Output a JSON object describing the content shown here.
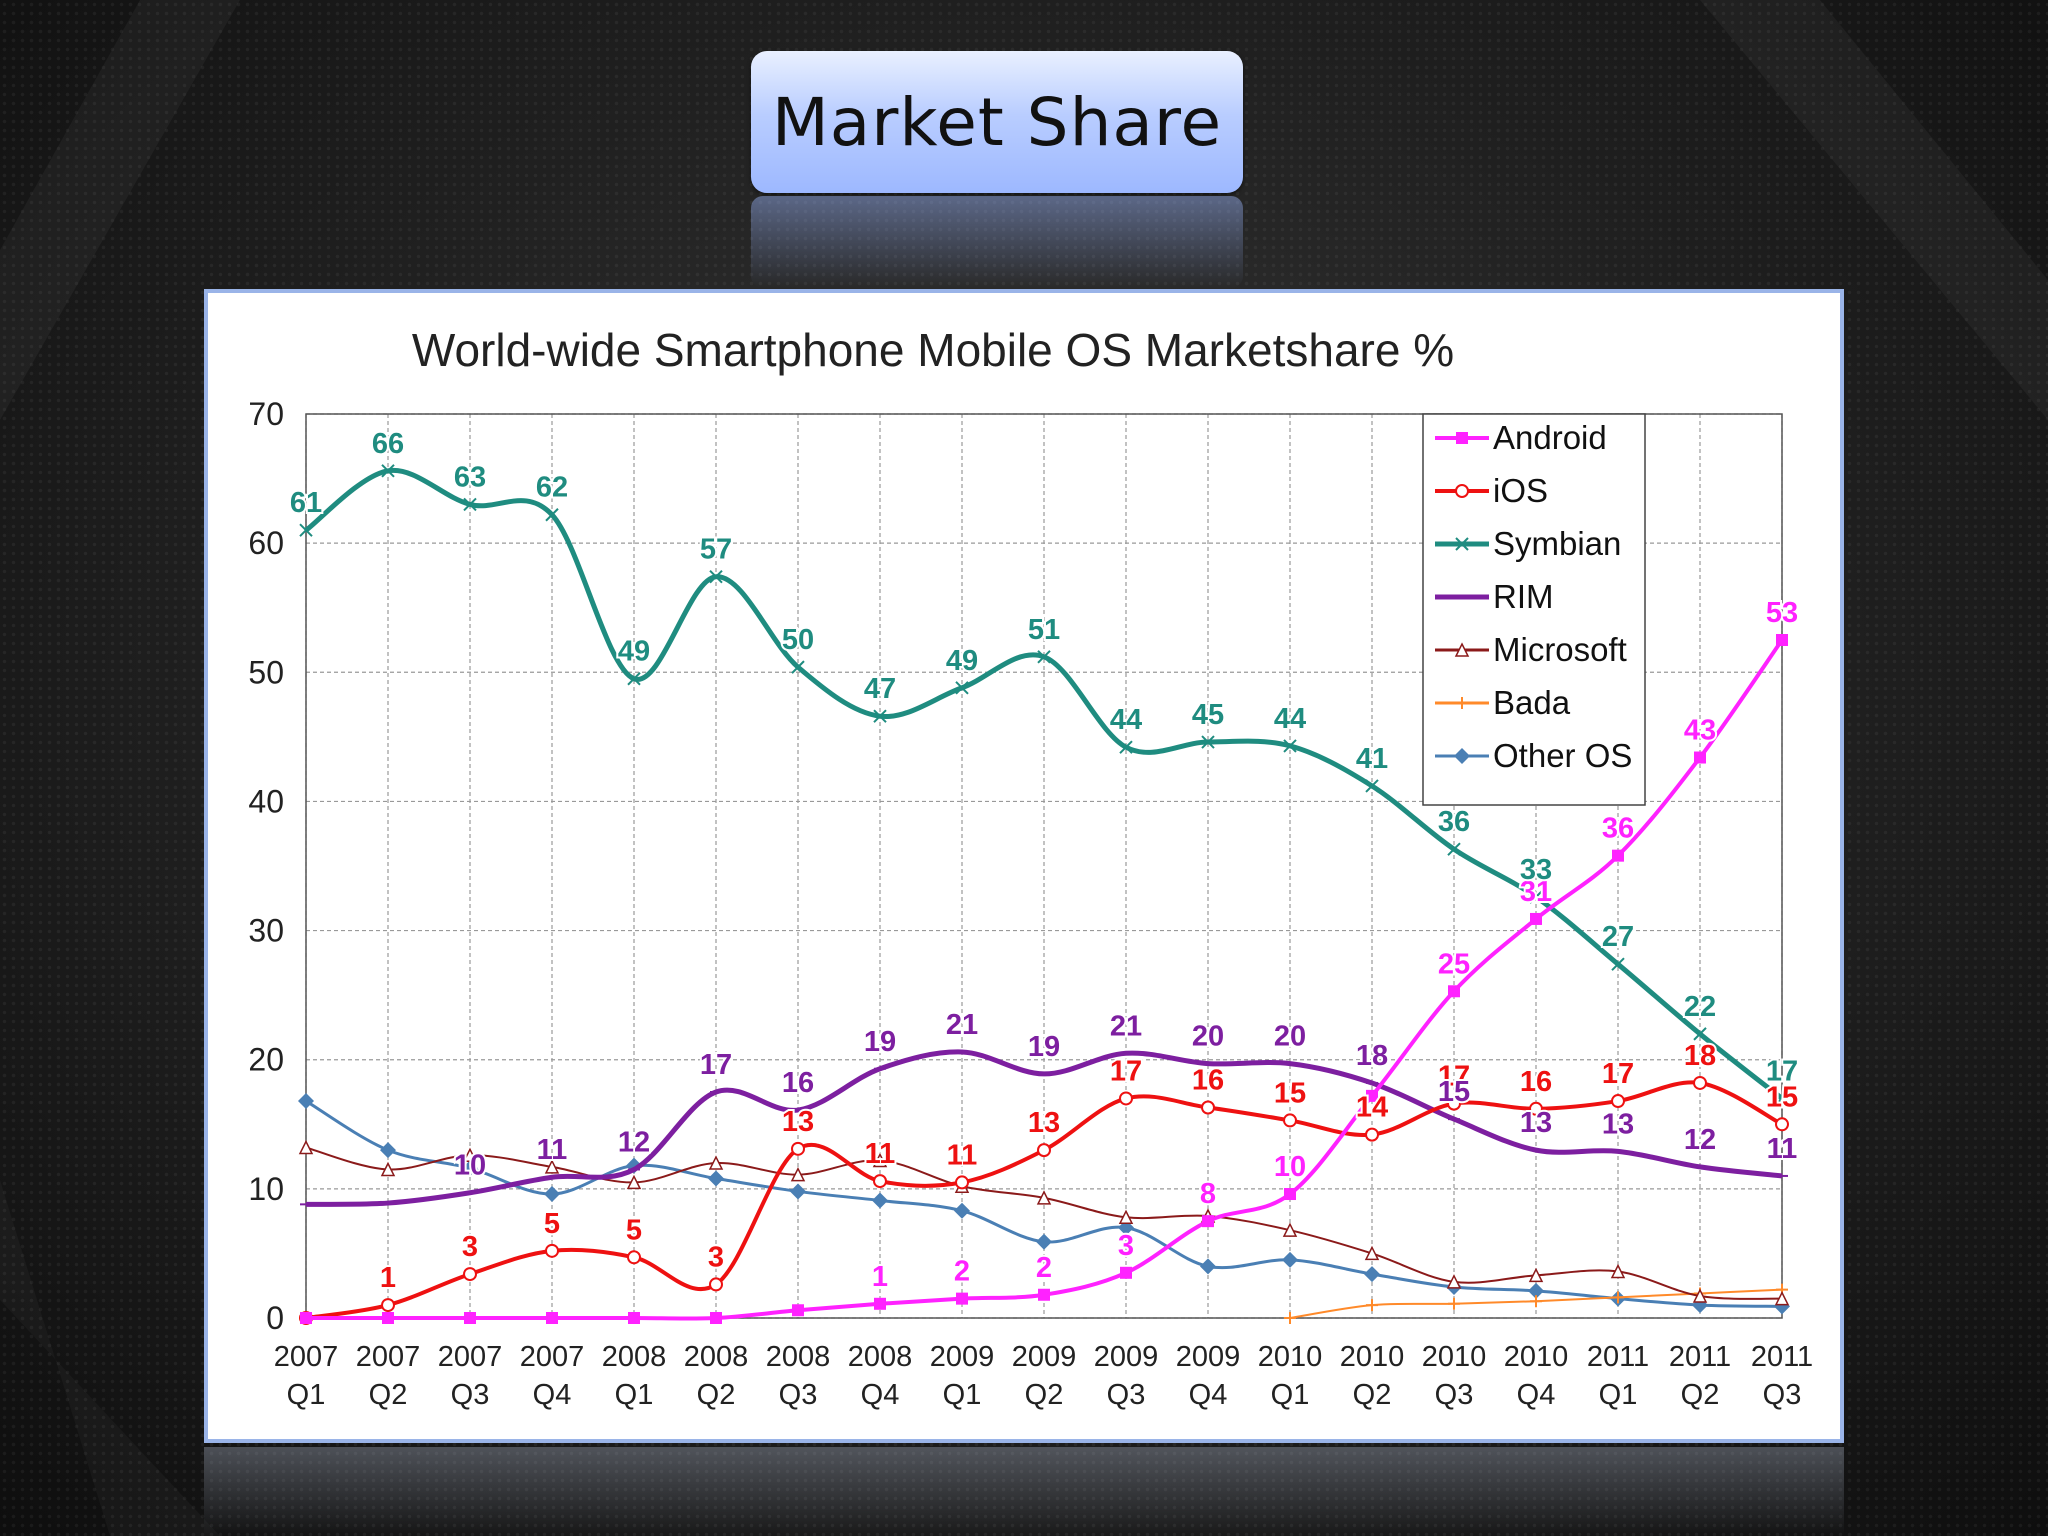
{
  "slide": {
    "title": "Market Share"
  },
  "chart_data": {
    "type": "line",
    "title": "World-wide Smartphone Mobile OS Marketshare  %",
    "xlabel": "",
    "ylabel": "",
    "ylim": [
      0,
      70
    ],
    "yticks": [
      0,
      10,
      20,
      30,
      40,
      50,
      60,
      70
    ],
    "grid": true,
    "legend_position": "top-right",
    "categories": [
      [
        "2007",
        "Q1"
      ],
      [
        "2007",
        "Q2"
      ],
      [
        "2007",
        "Q3"
      ],
      [
        "2007",
        "Q4"
      ],
      [
        "2008",
        "Q1"
      ],
      [
        "2008",
        "Q2"
      ],
      [
        "2008",
        "Q3"
      ],
      [
        "2008",
        "Q4"
      ],
      [
        "2009",
        "Q1"
      ],
      [
        "2009",
        "Q2"
      ],
      [
        "2009",
        "Q3"
      ],
      [
        "2009",
        "Q4"
      ],
      [
        "2010",
        "Q1"
      ],
      [
        "2010",
        "Q2"
      ],
      [
        "2010",
        "Q3"
      ],
      [
        "2010",
        "Q4"
      ],
      [
        "2011",
        "Q1"
      ],
      [
        "2011",
        "Q2"
      ],
      [
        "2011",
        "Q3"
      ]
    ],
    "series": [
      {
        "name": "Android",
        "color": "#ff22ff",
        "marker": "square",
        "width": 4,
        "values": [
          0,
          0,
          0,
          0,
          0,
          0,
          0.6,
          1.1,
          1.5,
          1.8,
          3.5,
          7.5,
          9.6,
          17.2,
          25.3,
          30.9,
          35.8,
          43.4,
          52.5
        ],
        "labels": [
          null,
          null,
          null,
          null,
          null,
          null,
          null,
          "1",
          "2",
          "2",
          "3",
          "8",
          "10",
          null,
          "25",
          "31",
          "36",
          "43",
          "53"
        ]
      },
      {
        "name": "iOS",
        "color": "#ee1111",
        "marker": "circle",
        "width": 4,
        "values": [
          0,
          1,
          3.4,
          5.2,
          4.7,
          2.6,
          13.1,
          10.6,
          10.5,
          13,
          17,
          16.3,
          15.3,
          14.2,
          16.6,
          16.2,
          16.8,
          18.2,
          15
        ],
        "labels": [
          null,
          "1",
          "3",
          "5",
          "5",
          "3",
          "13",
          "11",
          "11",
          "13",
          "17",
          "16",
          "15",
          "14",
          "17",
          "16",
          "17",
          "18",
          "15"
        ]
      },
      {
        "name": "Symbian",
        "color": "#1f8c80",
        "marker": "x",
        "width": 5,
        "values": [
          61,
          65.6,
          63,
          62.2,
          49.5,
          57.4,
          50.4,
          46.6,
          48.8,
          51.2,
          44.2,
          44.6,
          44.3,
          41.2,
          36.3,
          32.6,
          27.4,
          22,
          17
        ],
        "labels": [
          "61",
          "66",
          "63",
          "62",
          "49",
          "57",
          "50",
          "47",
          "49",
          "51",
          "44",
          "45",
          "44",
          "41",
          "36",
          "33",
          "27",
          "22",
          "17"
        ]
      },
      {
        "name": "RIM",
        "color": "#7d1fa0",
        "marker": "line",
        "width": 5,
        "values": [
          8.8,
          8.9,
          9.7,
          10.9,
          11.5,
          17.5,
          16.1,
          19.3,
          20.6,
          18.9,
          20.5,
          19.7,
          19.7,
          18.2,
          15.4,
          13,
          12.9,
          11.7,
          11
        ],
        "labels": [
          null,
          null,
          "10",
          "11",
          "12",
          "17",
          "16",
          "19",
          "21",
          "19",
          "21",
          "20",
          "20",
          "18",
          "15",
          "13",
          "13",
          "12",
          "11"
        ]
      },
      {
        "name": "Microsoft",
        "color": "#8b1a1a",
        "marker": "triangle",
        "width": 2,
        "values": [
          13.2,
          11.5,
          12.6,
          11.7,
          10.5,
          12,
          11.1,
          12.2,
          10.2,
          9.3,
          7.8,
          7.9,
          6.8,
          5,
          2.8,
          3.3,
          3.6,
          1.7,
          1.5
        ],
        "labels": []
      },
      {
        "name": "Bada",
        "color": "#ff8a2a",
        "marker": "plus",
        "width": 2,
        "values": [
          null,
          null,
          null,
          null,
          null,
          null,
          null,
          null,
          null,
          null,
          null,
          null,
          0,
          1,
          1.1,
          1.3,
          1.6,
          1.9,
          2.2
        ],
        "labels": []
      },
      {
        "name": "Other OS",
        "color": "#4a7fb4",
        "marker": "diamond",
        "width": 3,
        "values": [
          16.8,
          13,
          11.6,
          9.6,
          11.8,
          10.8,
          9.8,
          9.1,
          8.3,
          5.9,
          7,
          4,
          4.5,
          3.4,
          2.4,
          2.1,
          1.5,
          1,
          0.9
        ],
        "labels": []
      }
    ]
  }
}
